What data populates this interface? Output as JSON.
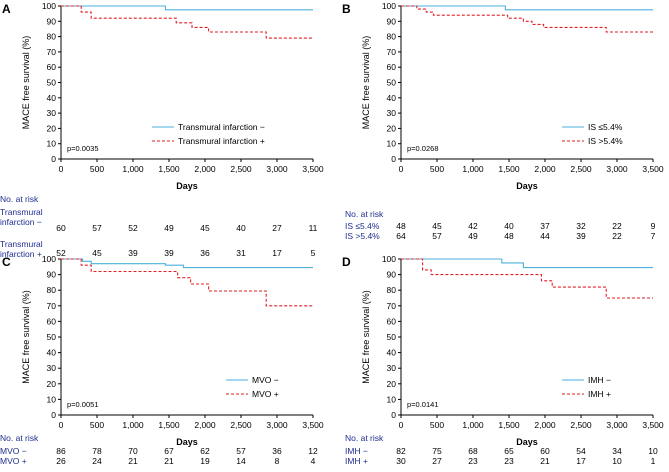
{
  "chart_data": [
    {
      "type": "line",
      "panel": "A",
      "xlabel": "Days",
      "ylabel": "MACE free survival (%)",
      "xlim": [
        0,
        3500
      ],
      "ylim": [
        0,
        100
      ],
      "xticks": [
        0,
        500,
        1000,
        1500,
        2000,
        2500,
        3000,
        3500
      ],
      "xtick_labels": [
        "0",
        "500",
        "1,000",
        "1,500",
        "2,000",
        "2,500",
        "3,000",
        "3,500"
      ],
      "yticks": [
        0,
        10,
        20,
        30,
        40,
        50,
        60,
        70,
        80,
        90,
        100
      ],
      "pvalue": "p=0.0035",
      "series": [
        {
          "name": "Transmural infarction −",
          "style": "solid",
          "color": "#4bb0dc",
          "x": [
            0,
            1450,
            1450,
            3500
          ],
          "y": [
            100,
            100,
            97.5,
            97.5
          ]
        },
        {
          "name": "Transmural infarction +",
          "style": "dashed",
          "color": "#e21f26",
          "x": [
            0,
            280,
            280,
            420,
            420,
            1600,
            1600,
            1820,
            1820,
            2050,
            2050,
            2850,
            2850,
            3500
          ],
          "y": [
            100,
            100,
            96,
            96,
            92,
            92,
            89,
            89,
            86,
            86,
            83,
            83,
            79,
            79
          ]
        }
      ],
      "risk_table": {
        "title": "No. at risk",
        "rows": [
          {
            "label_lines": [
              "Transmural",
              "infarction −"
            ],
            "values": [
              "60",
              "57",
              "52",
              "49",
              "45",
              "40",
              "27",
              "11"
            ]
          },
          {
            "label_lines": [
              "Transmural",
              "infarction +"
            ],
            "values": [
              "52",
              "45",
              "39",
              "39",
              "36",
              "31",
              "17",
              "5"
            ]
          }
        ]
      }
    },
    {
      "type": "line",
      "panel": "B",
      "xlabel": "Days",
      "ylabel": "MACE free survival (%)",
      "xlim": [
        0,
        3500
      ],
      "ylim": [
        0,
        100
      ],
      "xticks": [
        0,
        500,
        1000,
        1500,
        2000,
        2500,
        3000,
        3500
      ],
      "xtick_labels": [
        "0",
        "500",
        "1,000",
        "1,500",
        "2,000",
        "2,500",
        "3,000",
        "3,500"
      ],
      "yticks": [
        0,
        10,
        20,
        30,
        40,
        50,
        60,
        70,
        80,
        90,
        100
      ],
      "pvalue": "p=0.0268",
      "series": [
        {
          "name": "IS ≤5.4%",
          "style": "solid",
          "color": "#4bb0dc",
          "x": [
            0,
            1450,
            1450,
            3500
          ],
          "y": [
            100,
            100,
            97.5,
            97.5
          ]
        },
        {
          "name": "IS >5.4%",
          "style": "dashed",
          "color": "#e21f26",
          "x": [
            0,
            220,
            220,
            350,
            350,
            450,
            450,
            1480,
            1480,
            1700,
            1700,
            1820,
            1820,
            1980,
            1980,
            2850,
            2850,
            3500
          ],
          "y": [
            100,
            100,
            98,
            98,
            96,
            96,
            94,
            94,
            92,
            92,
            90,
            90,
            88,
            88,
            86,
            86,
            83,
            83
          ]
        }
      ],
      "risk_table": {
        "title": "No. at risk",
        "rows": [
          {
            "label_lines": [
              "IS ≤5.4%"
            ],
            "values": [
              "48",
              "45",
              "42",
              "40",
              "37",
              "32",
              "22",
              "9"
            ]
          },
          {
            "label_lines": [
              "IS >5.4%"
            ],
            "values": [
              "64",
              "57",
              "49",
              "48",
              "44",
              "39",
              "22",
              "7"
            ]
          }
        ]
      }
    },
    {
      "type": "line",
      "panel": "C",
      "xlabel": "Days",
      "ylabel": "MACE free survival (%)",
      "xlim": [
        0,
        3500
      ],
      "ylim": [
        0,
        100
      ],
      "xticks": [
        0,
        500,
        1000,
        1500,
        2000,
        2500,
        3000,
        3500
      ],
      "xtick_labels": [
        "0",
        "500",
        "1,000",
        "1,500",
        "2,000",
        "2,500",
        "3,000",
        "3,500"
      ],
      "yticks": [
        0,
        10,
        20,
        30,
        40,
        50,
        60,
        70,
        80,
        90,
        100
      ],
      "pvalue": "p=0.0051",
      "series": [
        {
          "name": "MVO −",
          "style": "solid",
          "color": "#4bb0dc",
          "x": [
            0,
            300,
            300,
            420,
            420,
            1450,
            1450,
            1700,
            1700,
            3500
          ],
          "y": [
            100,
            100,
            98.5,
            98.5,
            97,
            97,
            96,
            96,
            94.5,
            94.5
          ]
        },
        {
          "name": "MVO +",
          "style": "dashed",
          "color": "#e21f26",
          "x": [
            0,
            280,
            280,
            420,
            420,
            1620,
            1620,
            1800,
            1800,
            2050,
            2050,
            2850,
            2850,
            3500
          ],
          "y": [
            100,
            100,
            96,
            96,
            92,
            92,
            88,
            88,
            84,
            84,
            79.5,
            79.5,
            70,
            70
          ]
        }
      ],
      "risk_table": {
        "title": "No. at risk",
        "rows": [
          {
            "label_lines": [
              "MVO −"
            ],
            "values": [
              "86",
              "78",
              "70",
              "67",
              "62",
              "57",
              "36",
              "12"
            ]
          },
          {
            "label_lines": [
              "MVO +"
            ],
            "values": [
              "26",
              "24",
              "21",
              "21",
              "19",
              "14",
              "8",
              "4"
            ]
          }
        ]
      }
    },
    {
      "type": "line",
      "panel": "D",
      "xlabel": "Days",
      "ylabel": "MACE free survival (%)",
      "xlim": [
        0,
        3500
      ],
      "ylim": [
        0,
        100
      ],
      "xticks": [
        0,
        500,
        1000,
        1500,
        2000,
        2500,
        3000,
        3500
      ],
      "xtick_labels": [
        "0",
        "500",
        "1,000",
        "1,500",
        "2,000",
        "2,500",
        "3,000",
        "3,500"
      ],
      "yticks": [
        0,
        10,
        20,
        30,
        40,
        50,
        60,
        70,
        80,
        90,
        100
      ],
      "pvalue": "p=0.0141",
      "series": [
        {
          "name": "IMH −",
          "style": "solid",
          "color": "#4bb0dc",
          "x": [
            0,
            1400,
            1400,
            1700,
            1700,
            3500
          ],
          "y": [
            100,
            100,
            97.5,
            97.5,
            94.5,
            94.5
          ]
        },
        {
          "name": "IMH +",
          "style": "dashed",
          "color": "#e21f26",
          "x": [
            0,
            300,
            300,
            420,
            420,
            1950,
            1950,
            2100,
            2100,
            2850,
            2850,
            3500
          ],
          "y": [
            100,
            100,
            93,
            93,
            90,
            90,
            86,
            86,
            82,
            82,
            75,
            75
          ]
        }
      ],
      "risk_table": {
        "title": "No. at risk",
        "rows": [
          {
            "label_lines": [
              "IMH −"
            ],
            "values": [
              "82",
              "75",
              "68",
              "65",
              "60",
              "54",
              "34",
              "10"
            ]
          },
          {
            "label_lines": [
              "IMH +"
            ],
            "values": [
              "30",
              "27",
              "23",
              "23",
              "21",
              "17",
              "10",
              "1"
            ]
          }
        ]
      }
    }
  ]
}
